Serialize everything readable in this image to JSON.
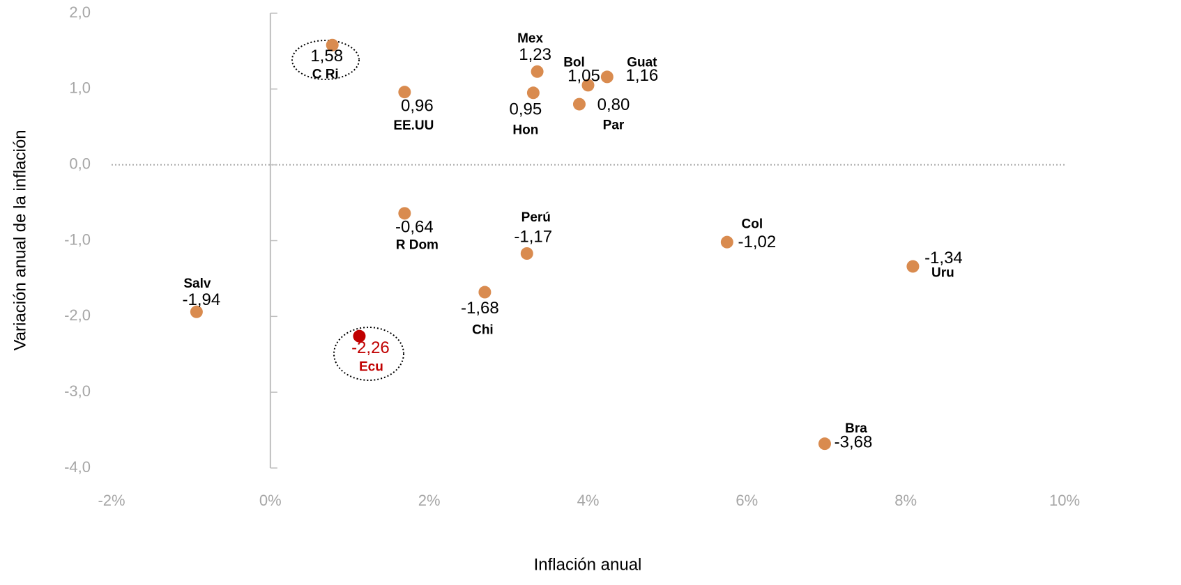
{
  "chart_data": {
    "type": "scatter",
    "x_label": "Inflación anual",
    "y_label": "Variación anual de la inflación",
    "point_labels": [
      "C Ri",
      "EE.UU",
      "Mex",
      "Hon",
      "Bol",
      "Guat",
      "Par",
      "R Dom",
      "Perú",
      "Col",
      "Uru",
      "Salv",
      "Chi",
      "Ecu",
      "Bra"
    ],
    "x": [
      0.78,
      1.69,
      3.36,
      3.31,
      4.0,
      4.24,
      3.89,
      1.69,
      3.23,
      5.75,
      8.09,
      -0.93,
      2.7,
      1.12,
      6.98
    ],
    "values": [
      1.58,
      0.96,
      1.23,
      0.95,
      1.05,
      1.16,
      0.8,
      -0.64,
      -1.17,
      -1.02,
      -1.34,
      -1.94,
      -1.68,
      -2.26,
      -3.68
    ],
    "value_labels": [
      "1,58",
      "0,96",
      "1,23",
      "0,95",
      "1,05",
      "1,16",
      "0,80",
      "-0,64",
      "-1,17",
      "-1,02",
      "-1,34",
      "-1,94",
      "-1,68",
      "-2,26",
      "-3,68"
    ],
    "colors": [
      "#d98b4f",
      "#d98b4f",
      "#d98b4f",
      "#d98b4f",
      "#d98b4f",
      "#d98b4f",
      "#d98b4f",
      "#d98b4f",
      "#d98b4f",
      "#d98b4f",
      "#d98b4f",
      "#d98b4f",
      "#d98b4f",
      "#c00000",
      "#d98b4f"
    ],
    "xlim": [
      -2,
      10
    ],
    "xticks": [
      {
        "value": -2,
        "label": "-2%"
      },
      {
        "value": 0,
        "label": "0%"
      },
      {
        "value": 2,
        "label": "2%"
      },
      {
        "value": 4,
        "label": "4%"
      },
      {
        "value": 6,
        "label": "6%"
      },
      {
        "value": 8,
        "label": "8%"
      },
      {
        "value": 10,
        "label": "10%"
      }
    ],
    "ylim": [
      -4,
      2
    ],
    "yticks": [
      {
        "value": 2,
        "label": "2,0"
      },
      {
        "value": 1,
        "label": "1,0"
      },
      {
        "value": 0,
        "label": "0,0"
      },
      {
        "value": -1,
        "label": "-1,0"
      },
      {
        "value": -2,
        "label": "-2,0"
      },
      {
        "value": -3,
        "label": "-3,0"
      },
      {
        "value": -4,
        "label": "-4,0"
      }
    ]
  }
}
